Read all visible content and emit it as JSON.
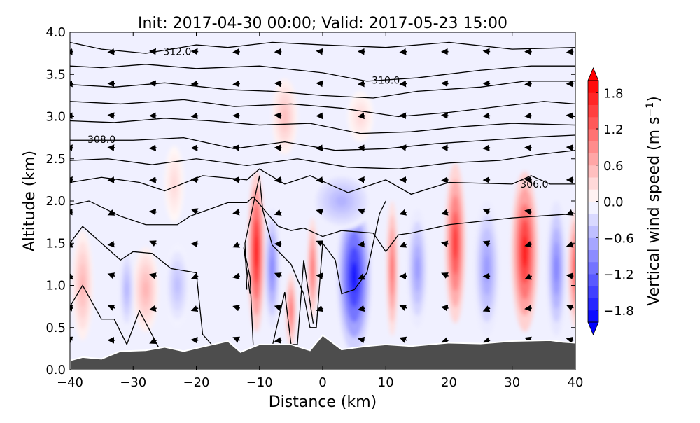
{
  "chart_data": {
    "type": "heatmap",
    "title": "Init: 2017-04-30 00:00; Valid: 2017-05-23 15:00",
    "xlabel": "Distance (km)",
    "ylabel": "Altitude (km)",
    "xlim": [
      -40,
      40
    ],
    "ylim": [
      0,
      4
    ],
    "xticks": [
      "−40",
      "−30",
      "−20",
      "−10",
      "0",
      "10",
      "20",
      "30",
      "40"
    ],
    "xtick_values": [
      -40,
      -30,
      -20,
      -10,
      0,
      10,
      20,
      30,
      40
    ],
    "yticks": [
      "0.0",
      "0.5",
      "1.0",
      "1.5",
      "2.0",
      "2.5",
      "3.0",
      "3.5",
      "4.0"
    ],
    "ytick_values": [
      0,
      0.5,
      1,
      1.5,
      2,
      2.5,
      3,
      3.5,
      4
    ],
    "colorbar": {
      "label": "Vertical wind speed (m s",
      "label_sup": "−1",
      "label_end": ")",
      "range": [
        -2.0,
        2.0
      ],
      "step": 0.2,
      "ticks": [
        "−1.8",
        "−1.2",
        "−0.6",
        "0.0",
        "0.6",
        "1.2",
        "1.8"
      ],
      "tick_values": [
        -1.8,
        -1.2,
        -0.6,
        0.0,
        0.6,
        1.2,
        1.8
      ],
      "extend": "both",
      "colormap": "bwr"
    },
    "contour_labels": [
      {
        "text": "312.0",
        "x": -23,
        "z": 3.77
      },
      {
        "text": "310.0",
        "x": 10,
        "z": 3.43
      },
      {
        "text": "308.0",
        "x": -35,
        "z": 2.73
      },
      {
        "text": "306.0",
        "x": 33.5,
        "z": 2.2
      }
    ],
    "vertical_wind_features": [
      {
        "x": -38,
        "z": 1.0,
        "wx": 1.6,
        "wz": 0.65,
        "value": 0.6
      },
      {
        "x": -28,
        "z": 0.95,
        "wx": 2.0,
        "wz": 0.5,
        "value": 0.6
      },
      {
        "x": -10.5,
        "z": 1.4,
        "wx": 1.3,
        "wz": 0.95,
        "value": 1.9
      },
      {
        "x": -5,
        "z": 0.7,
        "wx": 0.8,
        "wz": 0.45,
        "value": 1.2
      },
      {
        "x": -1.6,
        "z": 1.2,
        "wx": 0.8,
        "wz": 0.6,
        "value": 1.2
      },
      {
        "x": 11,
        "z": 1.2,
        "wx": 0.9,
        "wz": 0.8,
        "value": 1.2
      },
      {
        "x": 21,
        "z": 1.5,
        "wx": 1.6,
        "wz": 0.95,
        "value": 1.6
      },
      {
        "x": 32,
        "z": 1.4,
        "wx": 2.1,
        "wz": 0.95,
        "value": 1.8
      },
      {
        "x": 40,
        "z": 1.2,
        "wx": 1.1,
        "wz": 0.7,
        "value": 1.4
      },
      {
        "x": -6,
        "z": 3.0,
        "wx": 2.0,
        "wz": 0.45,
        "value": 0.5
      },
      {
        "x": 6,
        "z": 3.0,
        "wx": 2.0,
        "wz": 0.3,
        "value": 0.3
      },
      {
        "x": -23.5,
        "z": 2.2,
        "wx": 1.5,
        "wz": 0.45,
        "value": 0.3
      },
      {
        "x": -31,
        "z": 0.95,
        "wx": 1.2,
        "wz": 0.5,
        "value": -0.6
      },
      {
        "x": -23,
        "z": 1.0,
        "wx": 2.0,
        "wz": 0.5,
        "value": -0.5
      },
      {
        "x": -8,
        "z": 1.2,
        "wx": 1.2,
        "wz": 0.7,
        "value": -1.0
      },
      {
        "x": 5,
        "z": 1.1,
        "wx": 2.6,
        "wz": 0.9,
        "value": -1.8
      },
      {
        "x": 15,
        "z": 1.2,
        "wx": 1.6,
        "wz": 0.7,
        "value": -0.8
      },
      {
        "x": 26,
        "z": 1.2,
        "wx": 2.0,
        "wz": 0.8,
        "value": -0.8
      },
      {
        "x": 37,
        "z": 1.2,
        "wx": 1.5,
        "wz": 0.8,
        "value": -1.0
      },
      {
        "x": 3,
        "z": 2.0,
        "wx": 5.0,
        "wz": 0.35,
        "value": -0.6
      }
    ],
    "terrain": [
      [
        -40,
        0.11
      ],
      [
        -38,
        0.15
      ],
      [
        -35,
        0.13
      ],
      [
        -32,
        0.22
      ],
      [
        -28,
        0.23
      ],
      [
        -25,
        0.27
      ],
      [
        -22,
        0.22
      ],
      [
        -18,
        0.29
      ],
      [
        -15,
        0.34
      ],
      [
        -13,
        0.21
      ],
      [
        -10,
        0.3
      ],
      [
        -5,
        0.3
      ],
      [
        -2,
        0.23
      ],
      [
        0,
        0.41
      ],
      [
        3,
        0.24
      ],
      [
        7,
        0.28
      ],
      [
        10,
        0.3
      ],
      [
        14,
        0.28
      ],
      [
        20,
        0.32
      ],
      [
        25,
        0.31
      ],
      [
        30,
        0.34
      ],
      [
        36,
        0.35
      ],
      [
        38,
        0.33
      ],
      [
        40,
        0.32
      ]
    ],
    "contours": [
      [
        [
          -40,
          3.88
        ],
        [
          -35,
          3.8
        ],
        [
          -28,
          3.75
        ],
        [
          -20,
          3.85
        ],
        [
          -15,
          3.82
        ],
        [
          -8,
          3.88
        ],
        [
          0,
          3.85
        ],
        [
          10,
          3.82
        ],
        [
          20,
          3.88
        ],
        [
          30,
          3.8
        ],
        [
          40,
          3.82
        ]
      ],
      [
        [
          -40,
          3.6
        ],
        [
          -35,
          3.58
        ],
        [
          -28,
          3.62
        ],
        [
          -20,
          3.57
        ],
        [
          -10,
          3.6
        ],
        [
          0,
          3.52
        ],
        [
          7,
          3.42
        ],
        [
          15,
          3.46
        ],
        [
          25,
          3.55
        ],
        [
          33,
          3.6
        ],
        [
          40,
          3.6
        ]
      ],
      [
        [
          -40,
          3.38
        ],
        [
          -33,
          3.35
        ],
        [
          -25,
          3.4
        ],
        [
          -15,
          3.32
        ],
        [
          -8,
          3.3
        ],
        [
          0,
          3.25
        ],
        [
          8,
          3.22
        ],
        [
          15,
          3.3
        ],
        [
          25,
          3.35
        ],
        [
          32,
          3.42
        ],
        [
          40,
          3.42
        ]
      ],
      [
        [
          -40,
          3.18
        ],
        [
          -32,
          3.15
        ],
        [
          -22,
          3.2
        ],
        [
          -14,
          3.12
        ],
        [
          -5,
          3.15
        ],
        [
          3,
          3.1
        ],
        [
          12,
          3.0
        ],
        [
          20,
          3.05
        ],
        [
          28,
          3.12
        ],
        [
          35,
          3.18
        ],
        [
          40,
          3.15
        ]
      ],
      [
        [
          -40,
          2.95
        ],
        [
          -33,
          2.93
        ],
        [
          -25,
          2.98
        ],
        [
          -18,
          2.95
        ],
        [
          -10,
          2.9
        ],
        [
          -2,
          2.92
        ],
        [
          6,
          2.8
        ],
        [
          14,
          2.82
        ],
        [
          22,
          2.88
        ],
        [
          30,
          2.92
        ],
        [
          40,
          2.9
        ]
      ],
      [
        [
          -40,
          2.72
        ],
        [
          -30,
          2.72
        ],
        [
          -22,
          2.75
        ],
        [
          -14,
          2.62
        ],
        [
          -6,
          2.7
        ],
        [
          2,
          2.6
        ],
        [
          10,
          2.62
        ],
        [
          18,
          2.68
        ],
        [
          26,
          2.72
        ],
        [
          34,
          2.76
        ],
        [
          40,
          2.78
        ]
      ],
      [
        [
          -40,
          2.48
        ],
        [
          -34,
          2.5
        ],
        [
          -27,
          2.43
        ],
        [
          -20,
          2.5
        ],
        [
          -12,
          2.42
        ],
        [
          -4,
          2.5
        ],
        [
          4,
          2.4
        ],
        [
          12,
          2.38
        ],
        [
          20,
          2.45
        ],
        [
          28,
          2.48
        ],
        [
          34,
          2.55
        ],
        [
          40,
          2.6
        ]
      ],
      [
        [
          -40,
          2.22
        ],
        [
          -35,
          2.28
        ],
        [
          -29,
          2.22
        ],
        [
          -25,
          2.12
        ],
        [
          -19,
          2.3
        ],
        [
          -12,
          2.25
        ],
        [
          -10,
          2.38
        ],
        [
          -6,
          2.2
        ],
        [
          -2,
          2.3
        ],
        [
          4,
          2.1
        ],
        [
          10,
          2.25
        ],
        [
          14,
          2.08
        ],
        [
          20,
          2.22
        ],
        [
          30,
          2.2
        ],
        [
          33,
          2.3
        ],
        [
          36,
          2.2
        ],
        [
          40,
          2.2
        ]
      ],
      [
        [
          -40,
          1.95
        ],
        [
          -37,
          2.0
        ],
        [
          -32,
          1.82
        ],
        [
          -28,
          1.72
        ],
        [
          -23,
          1.72
        ],
        [
          -21,
          1.82
        ],
        [
          -15,
          1.98
        ],
        [
          -12,
          1.98
        ],
        [
          -11,
          2.05
        ],
        [
          -7,
          1.7
        ],
        [
          -5,
          1.65
        ],
        [
          -3,
          1.68
        ],
        [
          0,
          1.58
        ],
        [
          3,
          1.65
        ],
        [
          8,
          1.62
        ],
        [
          10,
          1.4
        ],
        [
          12,
          1.6
        ],
        [
          14,
          1.62
        ],
        [
          20,
          1.72
        ],
        [
          30,
          1.8
        ],
        [
          40,
          1.85
        ]
      ],
      [
        [
          -40,
          1.5
        ],
        [
          -38,
          1.7
        ],
        [
          -35,
          1.5
        ],
        [
          -32,
          1.3
        ],
        [
          -30,
          1.4
        ],
        [
          -27,
          1.38
        ],
        [
          -24,
          1.2
        ],
        [
          -20,
          1.15
        ],
        [
          -19,
          0.42
        ],
        [
          -17,
          0.25
        ]
      ],
      [
        [
          -40,
          0.75
        ],
        [
          -38,
          1.0
        ],
        [
          -35,
          0.6
        ],
        [
          -33,
          0.6
        ],
        [
          -31,
          0.3
        ],
        [
          -29,
          0.7
        ],
        [
          -26,
          0.27
        ]
      ],
      [
        [
          -12,
          0.95
        ],
        [
          -12.3,
          1.5
        ],
        [
          -11,
          1.95
        ],
        [
          -10,
          2.3
        ],
        [
          -9.5,
          1.9
        ],
        [
          -8,
          1.48
        ],
        [
          -5,
          1.25
        ],
        [
          -3,
          0.9
        ],
        [
          -2,
          0.5
        ],
        [
          -1,
          0.5
        ],
        [
          0,
          1.5
        ],
        [
          2,
          1.3
        ],
        [
          3,
          0.9
        ],
        [
          5,
          0.95
        ],
        [
          7,
          1.15
        ],
        [
          9,
          1.85
        ],
        [
          10,
          2.0
        ]
      ],
      [
        [
          -11,
          0.3
        ],
        [
          -11.5,
          1.1
        ],
        [
          -12.5,
          1.45
        ],
        [
          -11.5,
          0.9
        ]
      ],
      [
        [
          -8,
          0.27
        ],
        [
          -6,
          0.92
        ],
        [
          -5,
          0.3
        ],
        [
          -4,
          0.3
        ],
        [
          -3,
          1.3
        ],
        [
          -1.5,
          0.55
        ]
      ]
    ]
  }
}
